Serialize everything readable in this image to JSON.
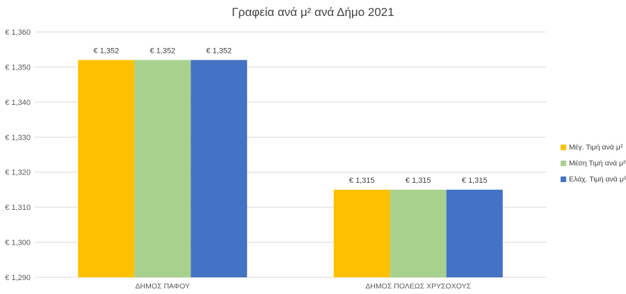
{
  "chart_data": {
    "type": "bar",
    "title": "Γραφεία ανά μ² ανά Δήμο 2021",
    "xlabel": "",
    "ylabel": "",
    "categories": [
      "ΔΗΜΟΣ ΠΑΦΟΥ",
      "ΔΗΜΟΣ ΠΟΛΕΩΣ ΧΡΥΣΟΧΟΥΣ"
    ],
    "series": [
      {
        "name": "Μέγ. Τιμή ανά μ²",
        "color": "#FFC000",
        "values": [
          1352,
          1315
        ],
        "value_labels": [
          "€ 1,352",
          "€ 1,315"
        ]
      },
      {
        "name": "Μέση Τιμή ανά μ²",
        "color": "#A9D18E",
        "values": [
          1352,
          1315
        ],
        "value_labels": [
          "€ 1,352",
          "€ 1,315"
        ]
      },
      {
        "name": "Ελάχ. Τιμή ανά μ²",
        "color": "#4472C4",
        "values": [
          1352,
          1315
        ],
        "value_labels": [
          "€ 1,352",
          "€ 1,315"
        ]
      }
    ],
    "ylim": [
      1290,
      1360
    ],
    "yticks": [
      1290,
      1300,
      1310,
      1320,
      1330,
      1340,
      1350,
      1360
    ],
    "ytick_labels": [
      "€ 1,290",
      "€ 1,300",
      "€ 1,310",
      "€ 1,320",
      "€ 1,330",
      "€ 1,340",
      "€ 1,350",
      "€ 1,360"
    ],
    "grid": true,
    "legend_position": "right"
  }
}
